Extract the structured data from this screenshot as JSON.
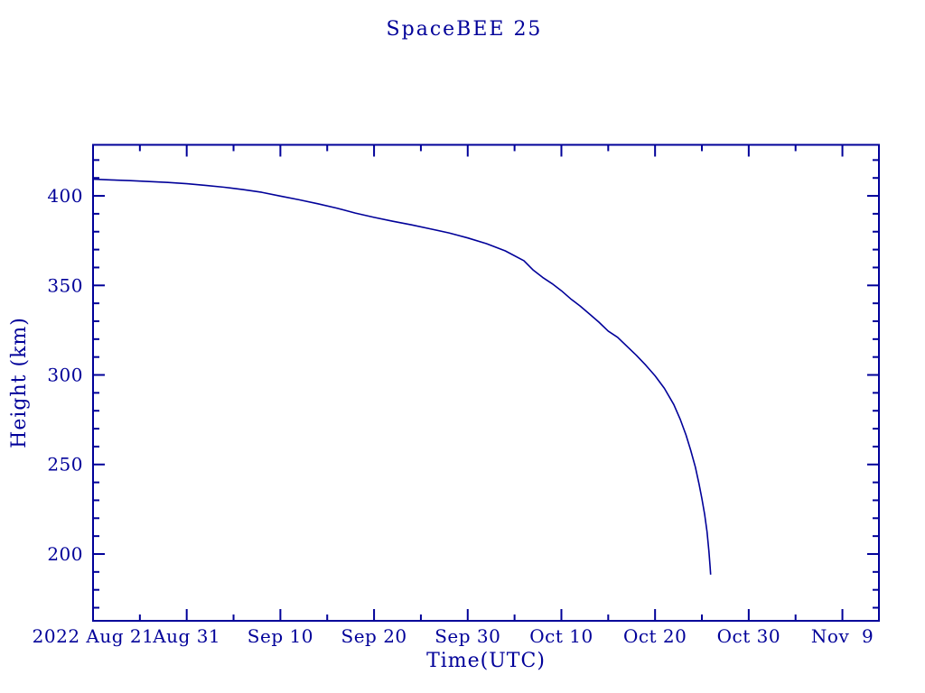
{
  "chart_data": {
    "type": "line",
    "title": "SpaceBEE 25",
    "xlabel": "Time(UTC)",
    "ylabel": "Height (km)",
    "line_color": "#000099",
    "background_color": "#ffffff",
    "grid": false,
    "legend": "none",
    "x_axis": {
      "unit": "days since 2022 Aug 21 00:00 UTC",
      "range": [
        0,
        83.9
      ],
      "major_ticks": [
        {
          "day": 0,
          "label": "2022 Aug 21"
        },
        {
          "day": 10,
          "label": "Aug 31"
        },
        {
          "day": 20,
          "label": "Sep 10"
        },
        {
          "day": 30,
          "label": "Sep 20"
        },
        {
          "day": 40,
          "label": "Sep 30"
        },
        {
          "day": 50,
          "label": "Oct 10"
        },
        {
          "day": 60,
          "label": "Oct 20"
        },
        {
          "day": 70,
          "label": "Oct 30"
        },
        {
          "day": 80,
          "label": "Nov  9"
        }
      ],
      "minor_tick_days": [
        5,
        15,
        25,
        35,
        45,
        55,
        65,
        75
      ]
    },
    "y_axis": {
      "unit": "km",
      "range": [
        162.7,
        428.5
      ],
      "major_ticks": [
        200,
        250,
        300,
        350,
        400
      ],
      "minor_tick_step": 10
    },
    "series": [
      {
        "name": "SpaceBEE 25 height",
        "points_day_km": [
          [
            0,
            409.3
          ],
          [
            2,
            408.9
          ],
          [
            4,
            408.5
          ],
          [
            6,
            408.0
          ],
          [
            8,
            407.5
          ],
          [
            10,
            406.8
          ],
          [
            12,
            405.9
          ],
          [
            14,
            404.8
          ],
          [
            16,
            403.5
          ],
          [
            18,
            402.0
          ],
          [
            20,
            399.9
          ],
          [
            22,
            397.8
          ],
          [
            24,
            395.6
          ],
          [
            26,
            393.2
          ],
          [
            28,
            390.4
          ],
          [
            30,
            388.0
          ],
          [
            32,
            385.8
          ],
          [
            34,
            383.8
          ],
          [
            36,
            381.6
          ],
          [
            38,
            379.3
          ],
          [
            40,
            376.5
          ],
          [
            42,
            373.3
          ],
          [
            44,
            369.3
          ],
          [
            46,
            363.8
          ],
          [
            47,
            358.5
          ],
          [
            48,
            354.5
          ],
          [
            49,
            351.0
          ],
          [
            50,
            347.0
          ],
          [
            51,
            342.5
          ],
          [
            52,
            338.5
          ],
          [
            53,
            334.0
          ],
          [
            54,
            329.5
          ],
          [
            55,
            324.5
          ],
          [
            56,
            321.0
          ],
          [
            57,
            316.0
          ],
          [
            58,
            311.0
          ],
          [
            59,
            305.5
          ],
          [
            60,
            299.5
          ],
          [
            61,
            292.5
          ],
          [
            62,
            283.5
          ],
          [
            62.7,
            275.0
          ],
          [
            63.3,
            266.5
          ],
          [
            63.8,
            258.0
          ],
          [
            64.3,
            248.5
          ],
          [
            64.7,
            239.0
          ],
          [
            65.0,
            231.0
          ],
          [
            65.3,
            222.0
          ],
          [
            65.55,
            212.5
          ],
          [
            65.75,
            201.5
          ],
          [
            65.88,
            193.0
          ],
          [
            65.93,
            188.5
          ]
        ]
      }
    ]
  }
}
